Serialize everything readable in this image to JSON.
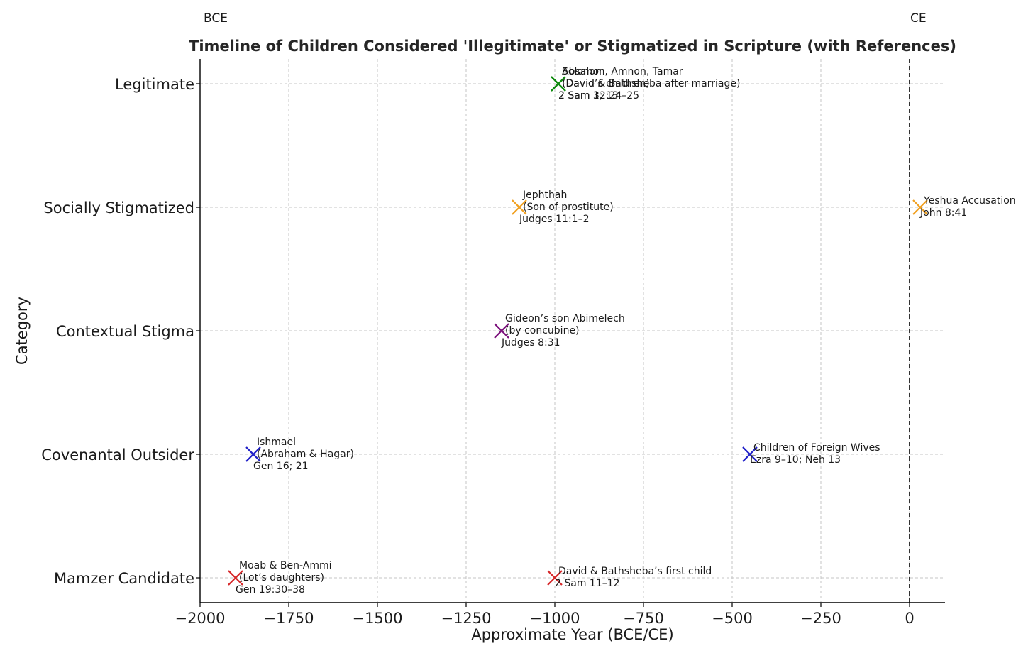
{
  "chart_data": {
    "type": "scatter",
    "title": "Timeline of Children Considered 'Illegitimate' or Stigmatized in Scripture (with References)",
    "xlabel": "Approximate Year (BCE/CE)",
    "ylabel": "Category",
    "xlim": [
      -2000,
      100
    ],
    "xticks": [
      -2000,
      -1750,
      -1500,
      -1250,
      -1000,
      -750,
      -500,
      -250,
      0
    ],
    "xtick_labels": [
      "−2000",
      "−1750",
      "−1500",
      "−1250",
      "−1000",
      "−750",
      "−500",
      "−250",
      "0"
    ],
    "categories": [
      "Mamzer Candidate",
      "Covenantal Outsider",
      "Contextual Stigma",
      "Socially Stigmatized",
      "Legitimate"
    ],
    "grid": true,
    "marker": "x",
    "era_labels": {
      "bce": "BCE",
      "ce": "CE"
    },
    "divider_x": 0,
    "points": [
      {
        "x": -1900,
        "category": "Mamzer Candidate",
        "color": "#d62728",
        "label": "Moab & Ben-Ammi\n(Lot’s daughters)",
        "ref": "Gen 19:30–38"
      },
      {
        "x": -1000,
        "category": "Mamzer Candidate",
        "color": "#d62728",
        "label": "David & Bathsheba’s first child",
        "ref": "2 Sam 11–12"
      },
      {
        "x": -1850,
        "category": "Covenantal Outsider",
        "color": "#1f1fc8",
        "label": "Ishmael\n(Abraham & Hagar)",
        "ref": "Gen 16; 21"
      },
      {
        "x": -450,
        "category": "Covenantal Outsider",
        "color": "#1f1fc8",
        "label": "Children of Foreign Wives",
        "ref": "Ezra 9–10; Neh 13"
      },
      {
        "x": -1150,
        "category": "Contextual Stigma",
        "color": "#7b0f7b",
        "label": "Gideon’s son Abimelech\n(by concubine)",
        "ref": "Judges 8:31"
      },
      {
        "x": -1100,
        "category": "Socially Stigmatized",
        "color": "#f0a020",
        "label": "Jephthah\n(Son of prostitute)",
        "ref": "Judges 11:1–2"
      },
      {
        "x": 30,
        "category": "Socially Stigmatized",
        "color": "#f0a020",
        "label": "Yeshua Accusation",
        "ref": "John 8:41"
      },
      {
        "x": -990,
        "category": "Legitimate",
        "color": "#0e8a0e",
        "label": "Solomon\n(David & Bathsheba after marriage)",
        "ref": "2 Sam 12:24–25"
      },
      {
        "x": -990,
        "category": "Legitimate",
        "color": "#0e8a0e",
        "label": "Absalom, Amnon, Tamar\n(David’s children)",
        "ref": "2 Sam 3; 13"
      }
    ]
  }
}
